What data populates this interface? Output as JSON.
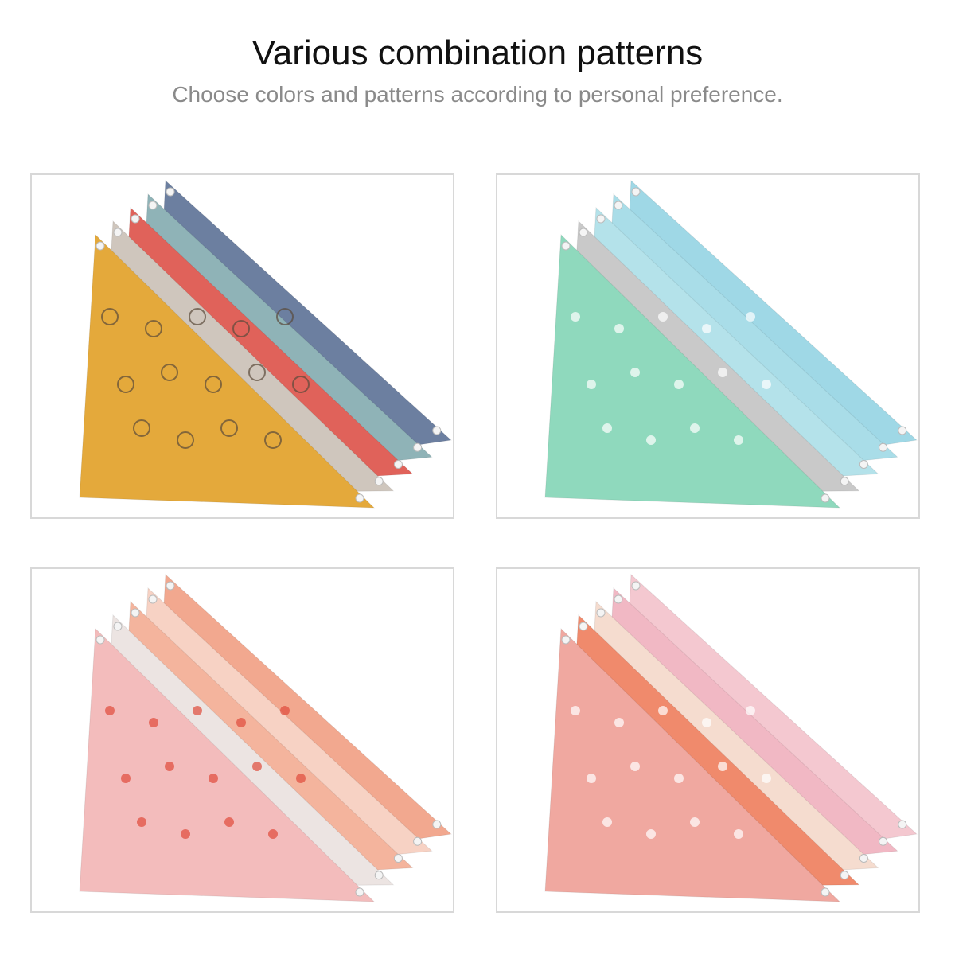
{
  "header": {
    "title": "Various combination patterns",
    "subtitle": "Choose colors and patterns according to personal preference."
  }
}
